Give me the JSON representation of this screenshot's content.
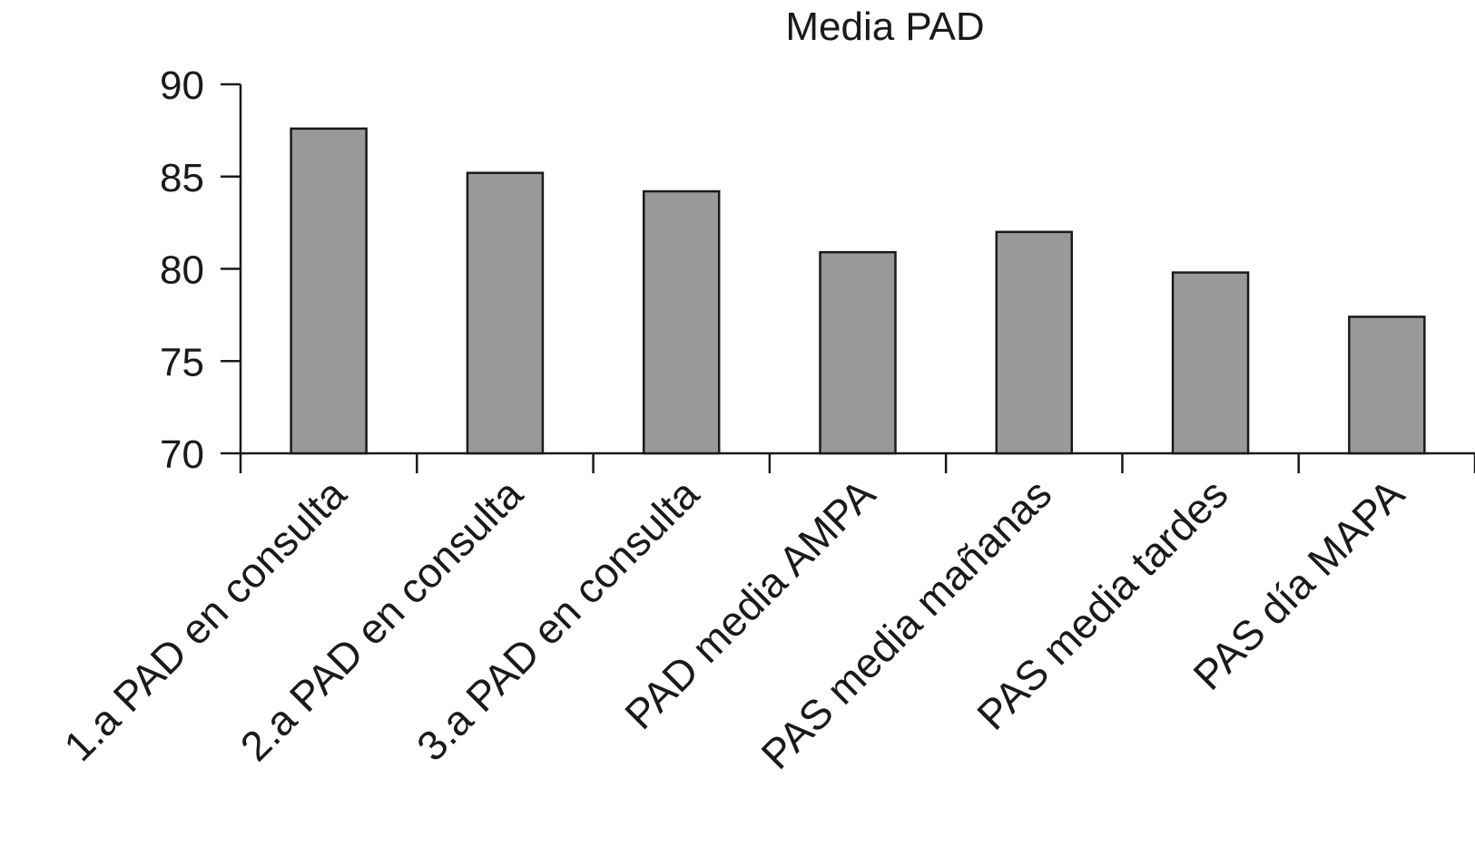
{
  "chart_data": {
    "type": "bar",
    "title": "Media PAD",
    "xlabel": "",
    "ylabel": "",
    "categories": [
      "1.a PAD en consulta",
      "2.a PAD en consulta",
      "3.a PAD en consulta",
      "PAD media AMPA",
      "PAS media mañanas",
      "PAS media tardes",
      "PAS día MAPA"
    ],
    "values": [
      87.6,
      85.2,
      84.2,
      80.9,
      82.0,
      79.8,
      77.4
    ],
    "ylim": [
      70,
      90
    ],
    "yticks": [
      70,
      75,
      80,
      85,
      90
    ],
    "grid": false,
    "legend": "none",
    "bar_color": "#999999",
    "edge_color": "#1a1a1a"
  }
}
